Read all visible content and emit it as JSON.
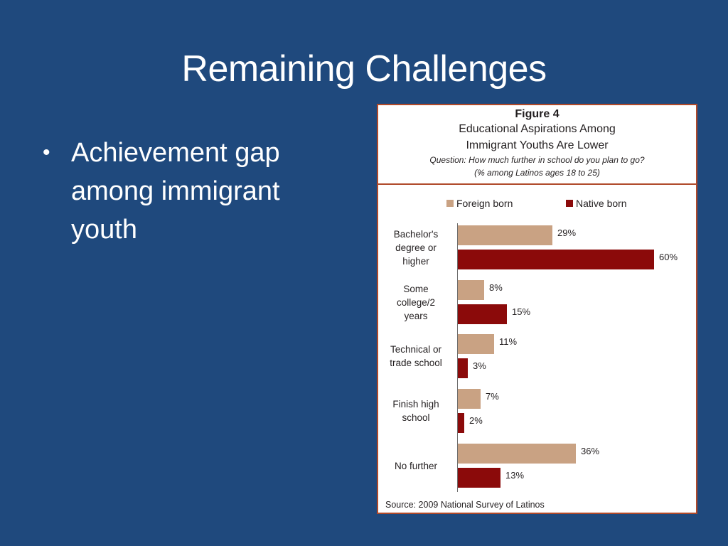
{
  "slide": {
    "title": "Remaining Challenges",
    "bullets": [
      {
        "text": "Achievement gap among immigrant youth"
      }
    ],
    "background_color": "#1f497d"
  },
  "figure": {
    "label": "Figure 4",
    "title_line1": "Educational Aspirations Among",
    "title_line2": "Immigrant Youths Are Lower",
    "question": "Question: How much further in school do you plan to go?",
    "subtitle": "(% among Latinos ages 18 to 25)",
    "source": "Source: 2009 National Survey of Latinos",
    "border_color": "#b04a2a"
  },
  "legend": {
    "foreign": {
      "label": "Foreign born",
      "color": "#c9a283"
    },
    "native": {
      "label": "Native born",
      "color": "#8b0a0a"
    }
  },
  "chart_data": {
    "type": "bar",
    "orientation": "horizontal",
    "title": "Educational Aspirations Among Immigrant Youths Are Lower",
    "subtitle": "Question: How much further in school do you plan to go? (% among Latinos ages 18 to 25)",
    "categories": [
      "Bachelor's degree or higher",
      "Some college/2 years",
      "Technical or trade school",
      "Finish high school",
      "No further"
    ],
    "series": [
      {
        "name": "Foreign born",
        "color": "#c9a283",
        "values": [
          29,
          8,
          11,
          7,
          36
        ],
        "labels": [
          "29%",
          "8%",
          "11%",
          "7%",
          "36%"
        ]
      },
      {
        "name": "Native born",
        "color": "#8b0a0a",
        "values": [
          60,
          15,
          3,
          2,
          13
        ],
        "labels": [
          "60%",
          "15%",
          "3%",
          "2%",
          "13%"
        ]
      }
    ],
    "xlabel": "",
    "ylabel": "",
    "xlim": [
      0,
      60
    ],
    "grid": false,
    "legend_position": "top",
    "source": "Source: 2009 National Survey of Latinos"
  },
  "category_display": [
    [
      "Bachelor's",
      "degree or",
      "higher"
    ],
    [
      "Some",
      "college/2",
      "years"
    ],
    [
      "Technical or",
      "trade school"
    ],
    [
      "Finish high",
      "school"
    ],
    [
      "No further"
    ]
  ]
}
